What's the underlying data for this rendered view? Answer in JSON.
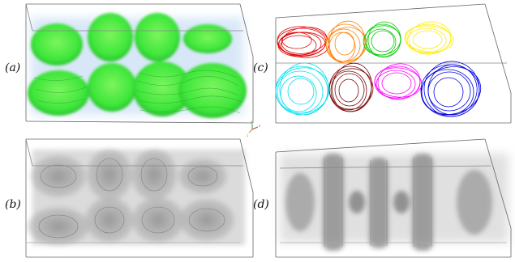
{
  "panels": [
    {
      "id": "a",
      "label": "(a)"
    },
    {
      "id": "b",
      "label": "(b)"
    },
    {
      "id": "c",
      "label": "(c)"
    },
    {
      "id": "d",
      "label": "(d)"
    }
  ],
  "axis_triad": {
    "x": "x",
    "y": "y",
    "z": "z"
  },
  "colors": {
    "volume_green": "#3ee63a",
    "volume_blue_halo": "#b9d5f3",
    "gray_volume": "#8c8c8c",
    "streamlines": [
      "#e00000",
      "#ff8000",
      "#00cc00",
      "#ffee00",
      "#00e0f0",
      "#7a0a0a",
      "#ff00ff",
      "#0000e0"
    ]
  }
}
